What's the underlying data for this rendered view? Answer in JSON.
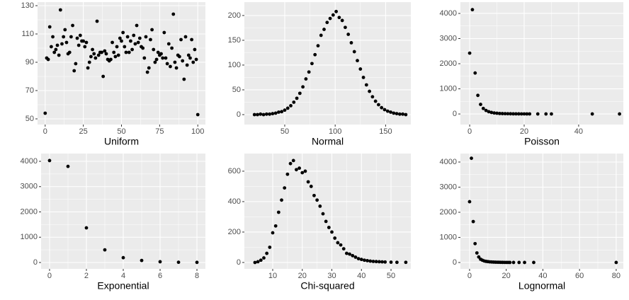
{
  "chart_data": [
    {
      "type": "scatter",
      "xlabel": "Uniform",
      "color": "#000000",
      "grid": true,
      "xlim": [
        -5,
        105
      ],
      "ylim": [
        46,
        132.5
      ],
      "xticks": [
        0,
        25,
        50,
        75,
        100
      ],
      "yticks": [
        50,
        70,
        90,
        110,
        130
      ],
      "x": [
        0,
        1,
        2,
        3,
        4,
        5,
        6,
        7,
        8,
        9,
        10,
        11,
        12,
        13,
        14,
        15,
        16,
        17,
        18,
        19,
        20,
        21,
        22,
        23,
        24,
        25,
        26,
        27,
        28,
        29,
        30,
        31,
        32,
        33,
        34,
        35,
        36,
        37,
        38,
        39,
        40,
        41,
        42,
        43,
        44,
        45,
        46,
        47,
        48,
        49,
        50,
        51,
        52,
        53,
        54,
        55,
        56,
        57,
        58,
        59,
        60,
        61,
        62,
        63,
        64,
        65,
        66,
        67,
        68,
        69,
        70,
        71,
        72,
        73,
        74,
        75,
        76,
        77,
        78,
        79,
        80,
        81,
        82,
        83,
        84,
        85,
        86,
        87,
        88,
        89,
        90,
        91,
        92,
        93,
        94,
        95,
        96,
        97,
        98,
        99,
        100
      ],
      "values": [
        54,
        93,
        92,
        115,
        101,
        108,
        97,
        99,
        102,
        95,
        127,
        103,
        108,
        113,
        104,
        96,
        97,
        108,
        116,
        84,
        89,
        107,
        102,
        109,
        105,
        105,
        101,
        104,
        86,
        90,
        94,
        99,
        96,
        93,
        119,
        95,
        97,
        97,
        80,
        98,
        96,
        92,
        91,
        92,
        104,
        97,
        94,
        101,
        95,
        107,
        105,
        111,
        101,
        97,
        108,
        97,
        105,
        99,
        109,
        103,
        116,
        104,
        107,
        101,
        100,
        93,
        108,
        83,
        86,
        106,
        113,
        99,
        90,
        92,
        97,
        95,
        96,
        93,
        111,
        93,
        89,
        103,
        87,
        100,
        124,
        90,
        86,
        95,
        94,
        106,
        91,
        78,
        108,
        88,
        95,
        93,
        106,
        90,
        99,
        92,
        53
      ]
    },
    {
      "type": "scatter",
      "xlabel": "Normal",
      "color": "#000000",
      "grid": true,
      "xlim": [
        10,
        175
      ],
      "ylim": [
        -20,
        227
      ],
      "xticks": [
        50,
        100,
        150
      ],
      "yticks": [
        0,
        50,
        100,
        150,
        200
      ],
      "x": [
        20,
        23,
        26,
        29,
        32,
        35,
        38,
        41,
        44,
        47,
        50,
        53,
        56,
        59,
        62,
        65,
        68,
        71,
        74,
        77,
        80,
        83,
        86,
        89,
        92,
        95,
        98,
        101,
        104,
        107,
        110,
        113,
        116,
        119,
        122,
        125,
        128,
        131,
        134,
        137,
        140,
        143,
        146,
        149,
        152,
        155,
        158,
        161,
        164,
        167,
        170
      ],
      "values": [
        0,
        0,
        1,
        0,
        1,
        1,
        2,
        3,
        5,
        6,
        9,
        13,
        18,
        25,
        33,
        43,
        56,
        72,
        86,
        103,
        121,
        139,
        160,
        172,
        186,
        194,
        201,
        208,
        196,
        190,
        176,
        162,
        145,
        127,
        109,
        92,
        75,
        60,
        47,
        36,
        27,
        20,
        14,
        10,
        7,
        5,
        3,
        2,
        1,
        1,
        0
      ]
    },
    {
      "type": "scatter",
      "xlabel": "Poisson",
      "color": "#000000",
      "grid": true,
      "xlim": [
        -3.4,
        56.4
      ],
      "ylim": [
        -420,
        4450
      ],
      "xticks": [
        0,
        20,
        40
      ],
      "yticks": [
        0,
        1000,
        2000,
        3000,
        4000
      ],
      "x": [
        0,
        1,
        2,
        3,
        4,
        5,
        6,
        7,
        8,
        9,
        10,
        11,
        12,
        13,
        14,
        15,
        16,
        17,
        18,
        19,
        20,
        21,
        22,
        25,
        28,
        30,
        45,
        55
      ],
      "values": [
        2420,
        4150,
        1630,
        740,
        380,
        220,
        140,
        90,
        60,
        40,
        30,
        20,
        15,
        12,
        10,
        8,
        6,
        5,
        4,
        3,
        3,
        2,
        2,
        1,
        1,
        1,
        1,
        1
      ]
    },
    {
      "type": "scatter",
      "xlabel": "Exponential",
      "color": "#000000",
      "grid": true,
      "xlim": [
        -0.46,
        8.46
      ],
      "ylim": [
        -252,
        4308
      ],
      "xticks": [
        0,
        2,
        4,
        6,
        8
      ],
      "yticks": [
        0,
        1000,
        2000,
        3000,
        4000
      ],
      "x": [
        0,
        1,
        2,
        3,
        4,
        5,
        6,
        7,
        8
      ],
      "values": [
        4030,
        3800,
        1370,
        500,
        190,
        80,
        30,
        10,
        5
      ]
    },
    {
      "type": "scatter",
      "xlabel": "Chi-squared",
      "color": "#000000",
      "grid": true,
      "xlim": [
        0.42,
        56.7
      ],
      "ylim": [
        -42,
        716
      ],
      "xticks": [
        10,
        20,
        30,
        40,
        50
      ],
      "yticks": [
        0,
        200,
        400,
        600
      ],
      "x": [
        4,
        5,
        6,
        7,
        8,
        9,
        10,
        11,
        12,
        13,
        14,
        15,
        16,
        17,
        18,
        19,
        20,
        21,
        22,
        23,
        24,
        25,
        26,
        27,
        28,
        29,
        30,
        31,
        32,
        33,
        34,
        35,
        36,
        37,
        38,
        39,
        40,
        41,
        42,
        43,
        44,
        45,
        46,
        47,
        48,
        50,
        52,
        55
      ],
      "values": [
        0,
        5,
        15,
        30,
        60,
        100,
        195,
        240,
        330,
        410,
        490,
        580,
        650,
        670,
        610,
        620,
        590,
        600,
        530,
        500,
        440,
        410,
        370,
        320,
        270,
        230,
        200,
        160,
        130,
        115,
        90,
        60,
        55,
        45,
        35,
        25,
        20,
        15,
        12,
        9,
        7,
        6,
        5,
        4,
        3,
        2,
        1,
        1
      ]
    },
    {
      "type": "scatter",
      "xlabel": "Lognormal",
      "color": "#000000",
      "grid": true,
      "xlim": [
        -5,
        83.9
      ],
      "ylim": [
        -254,
        4338
      ],
      "xticks": [
        0,
        20,
        40,
        60,
        80
      ],
      "yticks": [
        0,
        1000,
        2000,
        3000,
        4000
      ],
      "x": [
        0,
        1,
        2,
        3,
        4,
        5,
        6,
        7,
        8,
        9,
        10,
        11,
        12,
        13,
        14,
        15,
        16,
        17,
        18,
        19,
        20,
        21,
        22,
        24,
        27,
        30,
        35,
        80
      ],
      "values": [
        2420,
        4150,
        1630,
        750,
        380,
        220,
        130,
        90,
        60,
        45,
        35,
        25,
        20,
        15,
        12,
        10,
        8,
        6,
        5,
        4,
        3,
        3,
        2,
        2,
        1,
        1,
        1,
        1
      ]
    }
  ]
}
